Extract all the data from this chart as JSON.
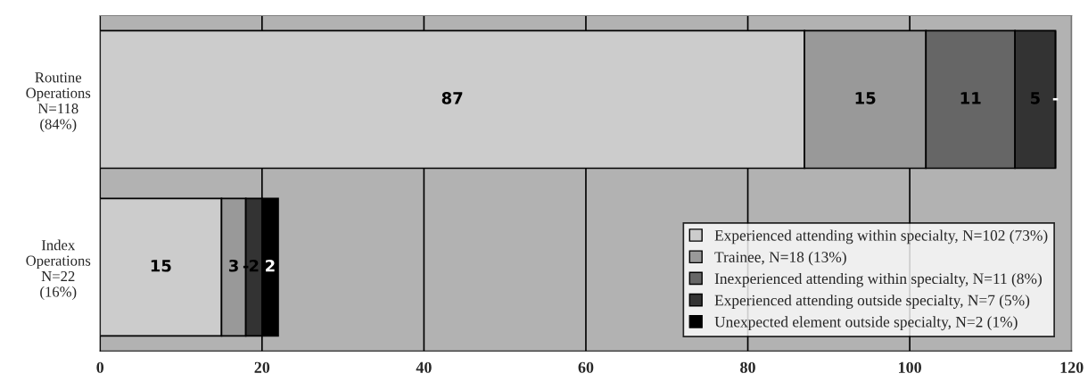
{
  "chart_data": {
    "type": "bar",
    "orientation": "horizontal",
    "stacked": true,
    "categories": [
      "Routine\nOperations\nN=118\n(84%)",
      "Index\nOperations\nN=22\n(16%)"
    ],
    "series": [
      {
        "name": "Experienced attending within specialty, N=102 (73%)",
        "color": "#cccccc",
        "values": [
          87,
          15
        ],
        "value_labels": [
          "87",
          "15"
        ]
      },
      {
        "name": "Trainee, N=18 (13%)",
        "color": "#999999",
        "values": [
          15,
          3
        ],
        "value_labels": [
          "15",
          "3"
        ]
      },
      {
        "name": "Inexperienced attending within specialty, N=11 (8%)",
        "color": "#666666",
        "values": [
          11,
          0
        ],
        "value_labels": [
          "11",
          "-"
        ]
      },
      {
        "name": "Experienced attending outside specialty, N=7 (5%)",
        "color": "#333333",
        "values": [
          5,
          2
        ],
        "value_labels": [
          "5",
          "2"
        ]
      },
      {
        "name": "Unexpected element outside specialty, N=2 (1%)",
        "color": "#000000",
        "values": [
          0,
          2
        ],
        "value_labels": [
          "-",
          "2"
        ]
      }
    ],
    "xlim": [
      0,
      120
    ],
    "xticks": [
      0,
      20,
      40,
      60,
      80,
      100,
      120
    ],
    "grid": "x",
    "legend": "bottom right"
  }
}
